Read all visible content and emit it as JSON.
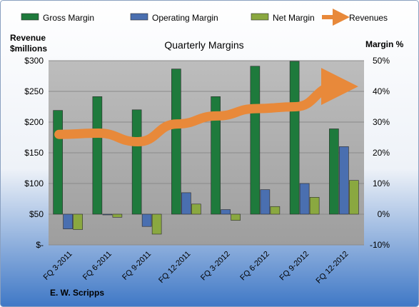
{
  "chart_data": {
    "type": "bar",
    "title": "Quarterly Margins",
    "company": "E. W. Scripps",
    "left_axis_label_line1": "Revenue",
    "left_axis_label_line2": "$millions",
    "right_axis_label": "Margin %",
    "categories": [
      "FQ 3-2011",
      "FQ 6-2011",
      "FQ 9-2011",
      "FQ 12-2011",
      "FQ 3-2012",
      "FQ 6-2012",
      "FQ 9-2012",
      "FQ 12-2012"
    ],
    "left_ticks": [
      "$300",
      "$250",
      "$200",
      "$150",
      "$100",
      "$50",
      "$-"
    ],
    "right_ticks": [
      "50%",
      "40%",
      "30%",
      "20%",
      "10%",
      "0%",
      "-10%"
    ],
    "revenue_ylim": [
      0,
      300
    ],
    "margin_ylim": [
      -10,
      50
    ],
    "legend_position": "top",
    "grid": true,
    "series": [
      {
        "name": "Gross Margin",
        "axis": "right",
        "kind": "bar",
        "color": "#1e7a3c",
        "values": [
          33.8,
          38.3,
          34.0,
          47.3,
          38.3,
          48.2,
          49.8,
          27.8
        ]
      },
      {
        "name": "Operating Margin",
        "axis": "right",
        "kind": "bar",
        "color": "#4a6fb0",
        "values": [
          -4.8,
          -0.2,
          -4.0,
          7.0,
          1.5,
          8.0,
          10.0,
          22.0
        ]
      },
      {
        "name": "Net Margin",
        "axis": "right",
        "kind": "bar",
        "color": "#8aa840",
        "values": [
          -5.0,
          -1.0,
          -6.5,
          3.3,
          -2.0,
          2.5,
          5.5,
          11.0
        ]
      },
      {
        "name": "Revenues",
        "axis": "left",
        "kind": "line",
        "color": "#e8893a",
        "values": [
          180,
          182,
          168,
          197,
          210,
          222,
          225,
          258
        ]
      }
    ]
  }
}
